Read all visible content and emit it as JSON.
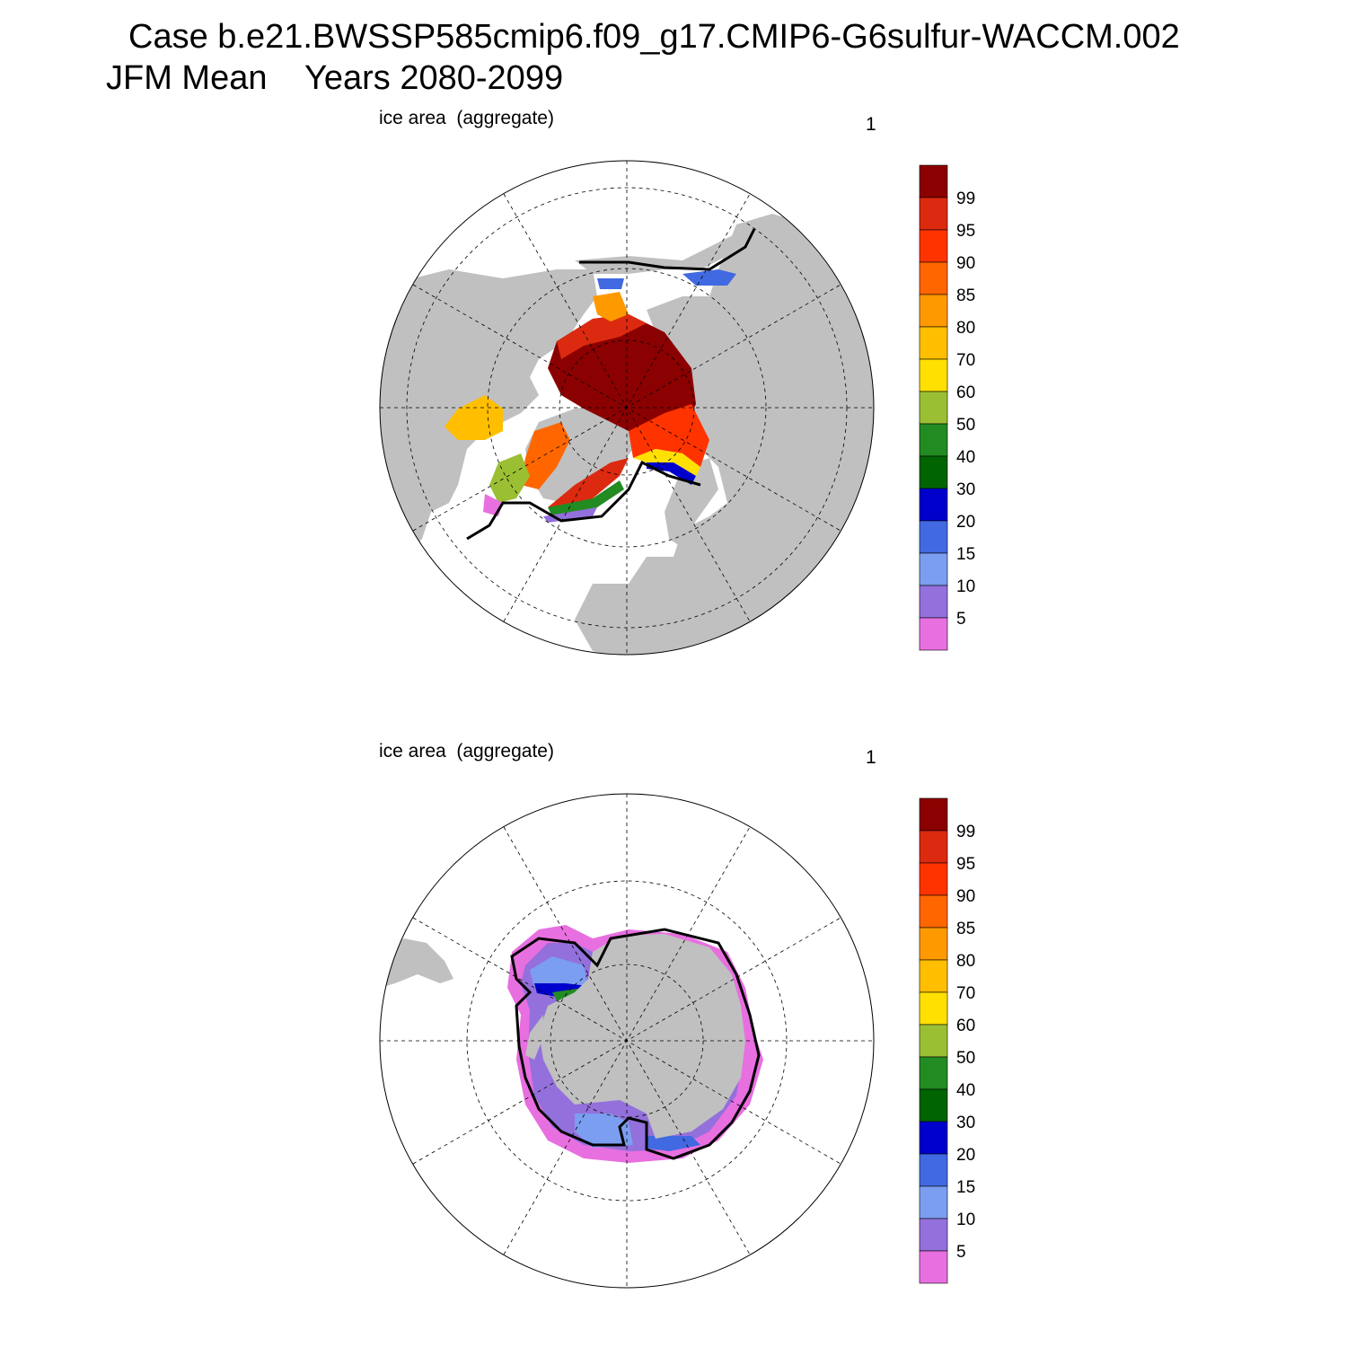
{
  "header": {
    "case_line": "Case b.e21.BWSSP585cmip6.f09_g17.CMIP6-G6sulfur-WACCM.002",
    "period_line": "JFM Mean    Years 2080-2099"
  },
  "panels": [
    {
      "id": "north",
      "variable": "ice area  (aggregate)",
      "corner_label": "1",
      "hemisphere": "Northern"
    },
    {
      "id": "south",
      "variable": "ice area  (aggregate)",
      "corner_label": "1",
      "hemisphere": "Southern"
    }
  ],
  "colorbar": {
    "labels": [
      "99",
      "95",
      "90",
      "85",
      "80",
      "70",
      "60",
      "50",
      "40",
      "30",
      "20",
      "15",
      "10",
      "5"
    ],
    "colors": [
      "#8b0000",
      "#dc2a10",
      "#ff3300",
      "#ff6600",
      "#ff9900",
      "#ffbf00",
      "#ffe000",
      "#9bbf33",
      "#228b22",
      "#006400",
      "#0000cd",
      "#4169e1",
      "#7b9ef0",
      "#9370db",
      "#e86fe0"
    ]
  },
  "map_style": {
    "land_color": "#c0c0c0",
    "ocean_color": "#ffffff",
    "ice_edge_line_color": "#000000"
  }
}
